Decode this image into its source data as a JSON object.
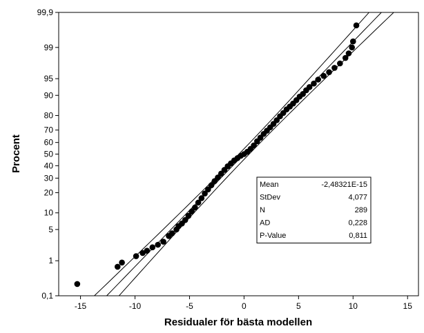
{
  "chart_data": {
    "type": "scatter",
    "subtype": "normal-probability-plot",
    "title": "",
    "xlabel": "Residualer för bästa modellen",
    "ylabel": "Procent",
    "xlim": [
      -17,
      16
    ],
    "x_ticks": [
      -15,
      -10,
      -5,
      0,
      5,
      10,
      15
    ],
    "x_tick_labels": [
      "-15",
      "-10",
      "-5",
      "0",
      "5",
      "10",
      "15"
    ],
    "y_scale": "normal-probability",
    "ylim": [
      0.1,
      99.9
    ],
    "y_ticks": [
      0.1,
      1,
      5,
      10,
      20,
      30,
      40,
      50,
      60,
      70,
      80,
      90,
      95,
      99,
      99.9
    ],
    "y_tick_labels": [
      "0,1",
      "1",
      "5",
      "10",
      "20",
      "30",
      "40",
      "50",
      "60",
      "70",
      "80",
      "90",
      "95",
      "99",
      "99,9"
    ],
    "grid": false,
    "fit_line": {
      "mean": 0,
      "stdev": 4.077
    },
    "confidence_band": true,
    "series": [
      {
        "points": [
          [
            -15.3,
            0.23
          ],
          [
            -11.6,
            0.7
          ],
          [
            -11.2,
            0.9
          ],
          [
            -9.9,
            1.3
          ],
          [
            -9.3,
            1.55
          ],
          [
            -8.9,
            1.75
          ],
          [
            -8.4,
            2.1
          ],
          [
            -7.9,
            2.4
          ],
          [
            -7.4,
            2.8
          ],
          [
            -6.9,
            3.7
          ],
          [
            -6.6,
            4.2
          ],
          [
            -6.2,
            5.0
          ],
          [
            -6.0,
            5.8
          ],
          [
            -5.7,
            6.5
          ],
          [
            -5.4,
            7.5
          ],
          [
            -5.1,
            8.9
          ],
          [
            -4.8,
            10.5
          ],
          [
            -4.5,
            12.2
          ],
          [
            -4.2,
            14.5
          ],
          [
            -3.9,
            16.8
          ],
          [
            -3.6,
            19.5
          ],
          [
            -3.3,
            22.0
          ],
          [
            -3.0,
            24.8
          ],
          [
            -2.7,
            27.8
          ],
          [
            -2.4,
            30.5
          ],
          [
            -2.1,
            33.5
          ],
          [
            -1.8,
            36.5
          ],
          [
            -1.5,
            39.5
          ],
          [
            -1.2,
            42.0
          ],
          [
            -0.9,
            44.5
          ],
          [
            -0.6,
            46.5
          ],
          [
            -0.3,
            48.5
          ],
          [
            0.0,
            50.0
          ],
          [
            0.3,
            52.0
          ],
          [
            0.6,
            54.5
          ],
          [
            0.9,
            57.5
          ],
          [
            1.2,
            61.0
          ],
          [
            1.5,
            64.0
          ],
          [
            1.8,
            67.0
          ],
          [
            2.1,
            69.5
          ],
          [
            2.4,
            72.0
          ],
          [
            2.7,
            74.5
          ],
          [
            3.0,
            77.0
          ],
          [
            3.3,
            79.5
          ],
          [
            3.6,
            81.5
          ],
          [
            3.9,
            83.5
          ],
          [
            4.2,
            85.0
          ],
          [
            4.5,
            86.5
          ],
          [
            4.8,
            88.0
          ],
          [
            5.1,
            89.5
          ],
          [
            5.4,
            90.5
          ],
          [
            5.7,
            91.8
          ],
          [
            6.0,
            92.8
          ],
          [
            6.4,
            93.8
          ],
          [
            6.8,
            94.8
          ],
          [
            7.3,
            95.6
          ],
          [
            7.8,
            96.3
          ],
          [
            8.3,
            97.0
          ],
          [
            8.8,
            97.6
          ],
          [
            9.3,
            98.2
          ],
          [
            9.6,
            98.6
          ],
          [
            9.9,
            99.0
          ],
          [
            10.0,
            99.3
          ],
          [
            10.3,
            99.75
          ]
        ]
      }
    ],
    "stats": [
      {
        "label": "Mean",
        "value": "-2,48321E-15"
      },
      {
        "label": "StDev",
        "value": "4,077"
      },
      {
        "label": "N",
        "value": "289"
      },
      {
        "label": "AD",
        "value": "0,228"
      },
      {
        "label": "P-Value",
        "value": "0,811"
      }
    ]
  }
}
